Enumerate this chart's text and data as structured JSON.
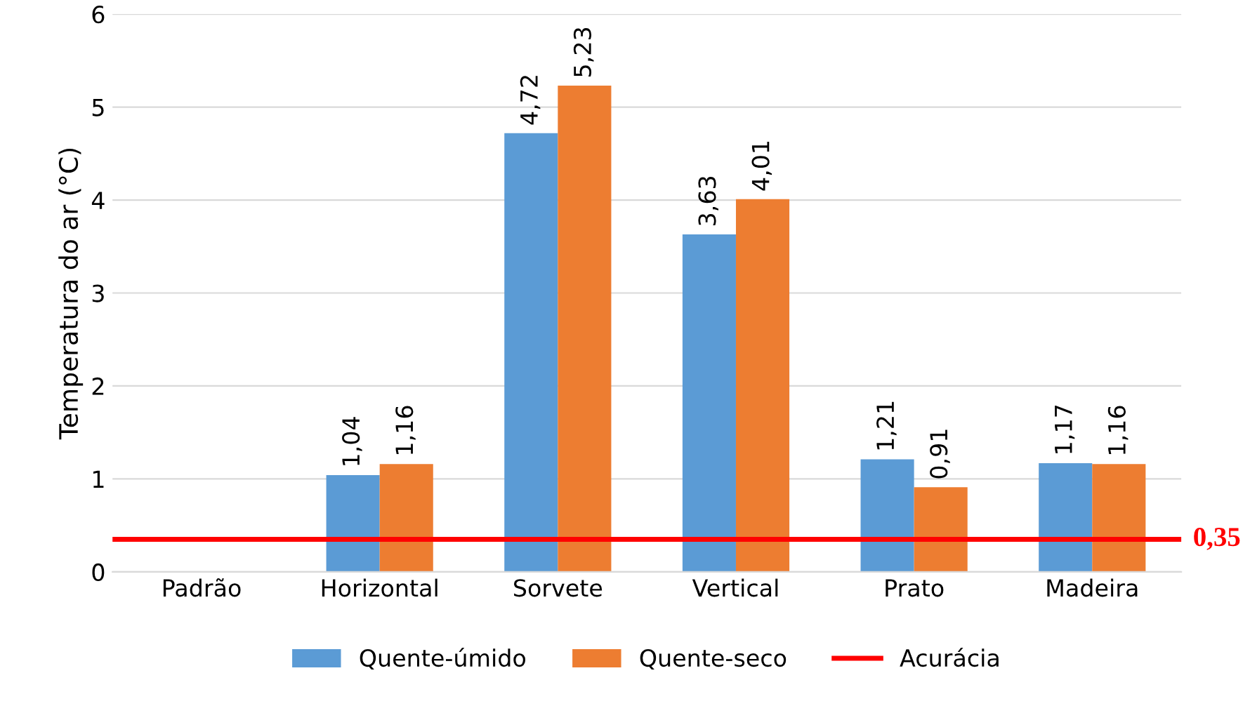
{
  "chart_data": {
    "type": "bar",
    "categories": [
      "Padrão",
      "Horizontal",
      "Sorvete",
      "Vertical",
      "Prato",
      "Madeira"
    ],
    "series": [
      {
        "name": "Quente-úmido",
        "color": "#5b9bd5",
        "values": [
          null,
          1.04,
          4.72,
          3.63,
          1.21,
          1.17
        ],
        "value_labels": [
          null,
          "1,04",
          "4,72",
          "3,63",
          "1,21",
          "1,17"
        ]
      },
      {
        "name": "Quente-seco",
        "color": "#ed7d31",
        "values": [
          null,
          1.16,
          5.23,
          4.01,
          0.91,
          1.16
        ],
        "value_labels": [
          null,
          "1,16",
          "5,23",
          "4,01",
          "0,91",
          "1,16"
        ]
      }
    ],
    "ylabel": "Temperatura do ar (°C)",
    "ylim": [
      0,
      6
    ],
    "yticks": [
      0,
      1,
      2,
      3,
      4,
      5,
      6
    ],
    "grid": "y",
    "legend": "bottom",
    "ref_lines": [
      {
        "axis": "y",
        "value": 0.35,
        "label": "Acurácia",
        "color": "#ff0000",
        "line_style": "solid"
      }
    ],
    "annotations": [
      "0,35"
    ]
  }
}
